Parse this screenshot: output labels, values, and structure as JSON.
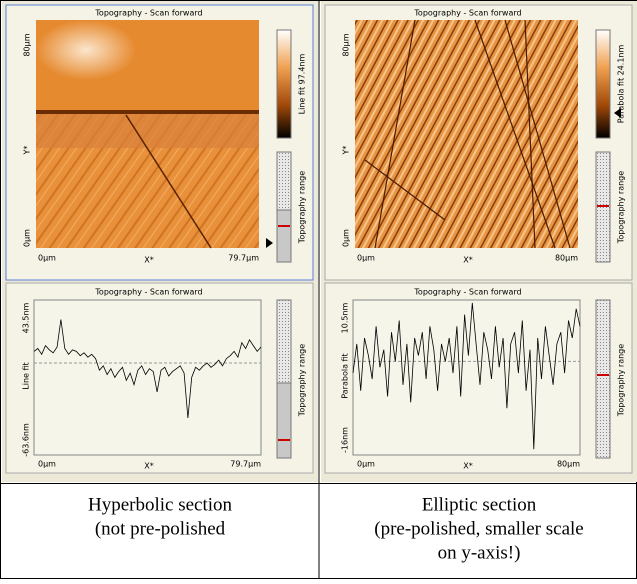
{
  "panels": [
    {
      "image": {
        "title": "Topography - Scan forward",
        "y_top": "80µm",
        "y_axis": "Y*",
        "y_bottom": "0µm",
        "x_left": "0µm",
        "x_axis": "X*",
        "x_right": "79.7µm",
        "colorbar": "Line fit 97.4nm",
        "range": "Topography range"
      },
      "profile": {
        "title": "Topography - Scan forward",
        "y_top": {
          "value": 43.5,
          "label": "43.5nm"
        },
        "y_axis": "Line fit",
        "y_bottom": {
          "value": -63.6,
          "label": "-63.6nm"
        },
        "x_left": "0µm",
        "x_axis": "X*",
        "x_right": "79.7µm",
        "range": "Topography range",
        "values": [
          8,
          10,
          6,
          12,
          9,
          7,
          11,
          30,
          10,
          6,
          9,
          8,
          5,
          7,
          4,
          6,
          3,
          -5,
          -2,
          -8,
          -4,
          -10,
          -6,
          -3,
          -12,
          -7,
          -15,
          -5,
          -2,
          -8,
          -4,
          -6,
          -20,
          -5,
          -3,
          -9,
          -6,
          -4,
          -2,
          -7,
          -38,
          -10,
          -3,
          -5,
          -2,
          0,
          -3,
          -1,
          2,
          -2,
          3,
          5,
          8,
          4,
          14,
          10,
          16,
          12,
          8,
          11
        ]
      },
      "caption": [
        "Hyperbolic section",
        "(not pre-polished"
      ]
    },
    {
      "image": {
        "title": "Topography - Scan forward",
        "y_top": "80µm",
        "y_axis": "Y*",
        "y_bottom": "0µm",
        "x_left": "0µm",
        "x_axis": "X*",
        "x_right": "80µm",
        "colorbar": "Parabola fit 24.1nm",
        "range": "Topography range"
      },
      "profile": {
        "title": "Topography - Scan forward",
        "y_top": {
          "value": 10.5,
          "label": "10.5nm"
        },
        "y_axis": "Parabola fit",
        "y_bottom": {
          "value": -16,
          "label": "-16nm"
        },
        "x_left": "0µm",
        "x_axis": "X*",
        "x_right": "80µm",
        "range": "Topography range",
        "values": [
          -2,
          3,
          -5,
          4,
          1,
          -3,
          6,
          -1,
          2,
          -6,
          5,
          0,
          7,
          -4,
          3,
          -7,
          4,
          1,
          5,
          -3,
          6,
          2,
          -5,
          3,
          0,
          4,
          -2,
          6,
          -6,
          8,
          1,
          10,
          3,
          -4,
          5,
          2,
          -3,
          6,
          -1,
          4,
          -8,
          3,
          5,
          -2,
          7,
          -5,
          2,
          -15,
          4,
          -3,
          6,
          1,
          -4,
          3,
          5,
          -2,
          7,
          4,
          9,
          6
        ]
      },
      "caption": [
        "Elliptic section",
        "(pre-polished, smaller scale",
        "on y-axis!)"
      ]
    }
  ]
}
